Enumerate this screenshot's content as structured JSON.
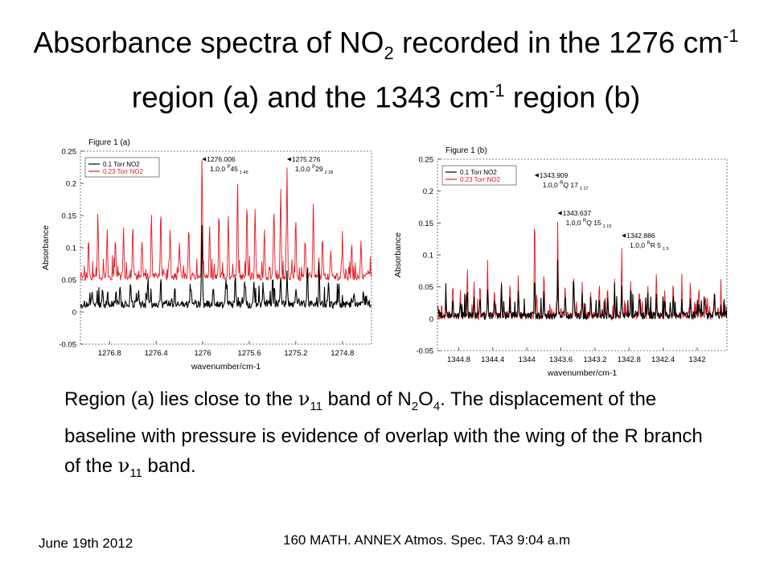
{
  "title": {
    "part1": "Absorbance spectra of NO",
    "sub1": "2",
    "part2": " recorded in the 1276 cm",
    "sup1": "-1",
    "part3": " region (a) and the 1343 cm",
    "sup2": "-1",
    "part4": " region (b)"
  },
  "caption": {
    "t1": "Region (a) lies close to  the ",
    "nu": "ν",
    "sub11": "11",
    "t2": " band of N",
    "sub2": "2",
    "t3": "O",
    "sub4": "4",
    "t4": ". The displacement of the baseline with pressure is evidence of overlap with the wing  of the R branch of the ",
    "nu2": "ν",
    "sub11b": "11",
    "t5": " band."
  },
  "footer": {
    "date": "June 19th 2012",
    "middle": "160 MATH. ANNEX Atmos. Spec. TA3 9:04 a.m"
  },
  "colors": {
    "black_series": "#000000",
    "red_series": "#e8141e"
  },
  "chart_data": [
    {
      "type": "line",
      "title": "Figure 1 (a)",
      "xlabel": "wavenumber/cm-1",
      "ylabel": "Absorbance",
      "xlim": [
        1277.05,
        1274.55
      ],
      "ylim": [
        -0.05,
        0.25
      ],
      "x_reversed": true,
      "xticks": [
        "1276.8",
        "1276.4",
        "1276",
        "1275.6",
        "1275.2",
        "1274.8"
      ],
      "xtick_values": [
        1276.8,
        1276.4,
        1276.0,
        1275.6,
        1275.2,
        1274.8
      ],
      "yticks": [
        "-0.05",
        "0",
        "0.05",
        "0.1",
        "0.15",
        "0.2",
        "0.25"
      ],
      "ytick_values": [
        -0.05,
        0,
        0.05,
        0.1,
        0.15,
        0.2,
        0.25
      ],
      "legend": {
        "position": "top-left",
        "entries": [
          "0.1 Torr NO2",
          "0.23 Torr NO2"
        ]
      },
      "series": [
        {
          "name": "0.1 Torr NO2",
          "color": "#000000",
          "baseline": 0.012,
          "peaks": [
            [
              1276.95,
              0.03
            ],
            [
              1276.86,
              0.035
            ],
            [
              1276.71,
              0.04
            ],
            [
              1276.62,
              0.045
            ],
            [
              1276.55,
              0.03
            ],
            [
              1276.47,
              0.05
            ],
            [
              1276.36,
              0.055
            ],
            [
              1276.24,
              0.04
            ],
            [
              1276.1,
              0.04
            ],
            [
              1276.006,
              0.14
            ],
            [
              1275.91,
              0.04
            ],
            [
              1275.8,
              0.05
            ],
            [
              1275.72,
              0.06
            ],
            [
              1275.64,
              0.045
            ],
            [
              1275.56,
              0.05
            ],
            [
              1275.48,
              0.04
            ],
            [
              1275.4,
              0.045
            ],
            [
              1275.33,
              0.05
            ],
            [
              1275.276,
              0.06
            ],
            [
              1275.2,
              0.04
            ],
            [
              1275.1,
              0.07
            ],
            [
              1275.0,
              0.06
            ],
            [
              1274.92,
              0.05
            ],
            [
              1274.83,
              0.04
            ],
            [
              1274.7,
              0.03
            ],
            [
              1274.62,
              0.035
            ]
          ]
        },
        {
          "name": "0.23 Torr NO2",
          "color": "#e8141e",
          "baseline": 0.055,
          "peaks": [
            [
              1276.98,
              0.12
            ],
            [
              1276.9,
              0.15
            ],
            [
              1276.82,
              0.13
            ],
            [
              1276.75,
              0.12
            ],
            [
              1276.68,
              0.13
            ],
            [
              1276.6,
              0.14
            ],
            [
              1276.52,
              0.11
            ],
            [
              1276.44,
              0.15
            ],
            [
              1276.36,
              0.16
            ],
            [
              1276.28,
              0.13
            ],
            [
              1276.2,
              0.11
            ],
            [
              1276.12,
              0.14
            ],
            [
              1276.006,
              0.24
            ],
            [
              1275.94,
              0.13
            ],
            [
              1275.86,
              0.16
            ],
            [
              1275.78,
              0.15
            ],
            [
              1275.7,
              0.2
            ],
            [
              1275.62,
              0.17
            ],
            [
              1275.55,
              0.16
            ],
            [
              1275.47,
              0.13
            ],
            [
              1275.39,
              0.15
            ],
            [
              1275.33,
              0.2
            ],
            [
              1275.276,
              0.22
            ],
            [
              1275.2,
              0.14
            ],
            [
              1275.12,
              0.12
            ],
            [
              1275.05,
              0.17
            ],
            [
              1274.97,
              0.12
            ],
            [
              1274.9,
              0.1
            ],
            [
              1274.8,
              0.12
            ],
            [
              1274.72,
              0.1
            ],
            [
              1274.64,
              0.11
            ]
          ]
        }
      ],
      "annotations": [
        {
          "x": 1276.006,
          "line1": "1276.006",
          "line2": "1,0,0 ",
          "sup": "P",
          "line2b": "45",
          "sub": "1 45"
        },
        {
          "x": 1275.276,
          "line1": "1275.276",
          "line2": "1,0,0 ",
          "sup": "P",
          "line2b": "29",
          "sub": "2 28"
        }
      ]
    },
    {
      "type": "line",
      "title": "Figure 1 (b)",
      "xlabel": "wavenumber/cm-1",
      "ylabel": "Absorbance",
      "xlim": [
        1345.05,
        1341.65
      ],
      "ylim": [
        -0.05,
        0.25
      ],
      "x_reversed": true,
      "xticks": [
        "1344.8",
        "1344.4",
        "1344",
        "1343.6",
        "1343.2",
        "1342.8",
        "1342.4",
        "1342"
      ],
      "xtick_values": [
        1344.8,
        1344.4,
        1344.0,
        1343.6,
        1343.2,
        1342.8,
        1342.4,
        1342.0
      ],
      "yticks": [
        "-0.05",
        "0",
        "0.05",
        "0.1",
        "0.15",
        "0.2",
        "0.25"
      ],
      "ytick_values": [
        -0.05,
        0,
        0.05,
        0.1,
        0.15,
        0.2,
        0.25
      ],
      "legend": {
        "position": "top-left",
        "entries": [
          "0.1 Torr NO2",
          "0.23 Torr NO2"
        ]
      },
      "series": [
        {
          "name": "0.1 Torr NO2",
          "color": "#000000",
          "baseline": 0.005,
          "peaks": [
            [
              1344.95,
              0.03
            ],
            [
              1344.87,
              0.04
            ],
            [
              1344.78,
              0.03
            ],
            [
              1344.7,
              0.05
            ],
            [
              1344.62,
              0.035
            ],
            [
              1344.55,
              0.04
            ],
            [
              1344.46,
              0.05
            ],
            [
              1344.38,
              0.035
            ],
            [
              1344.3,
              0.04
            ],
            [
              1344.2,
              0.03
            ],
            [
              1344.1,
              0.05
            ],
            [
              1343.909,
              0.07
            ],
            [
              1343.8,
              0.05
            ],
            [
              1343.637,
              0.09
            ],
            [
              1343.55,
              0.04
            ],
            [
              1343.45,
              0.05
            ],
            [
              1343.35,
              0.04
            ],
            [
              1343.25,
              0.035
            ],
            [
              1343.15,
              0.04
            ],
            [
              1343.05,
              0.03
            ],
            [
              1342.97,
              0.035
            ],
            [
              1342.886,
              0.05
            ],
            [
              1342.78,
              0.04
            ],
            [
              1342.68,
              0.035
            ],
            [
              1342.58,
              0.04
            ],
            [
              1342.48,
              0.045
            ],
            [
              1342.38,
              0.03
            ],
            [
              1342.28,
              0.04
            ],
            [
              1342.18,
              0.03
            ],
            [
              1342.08,
              0.035
            ],
            [
              1341.98,
              0.03
            ],
            [
              1341.9,
              0.025
            ],
            [
              1341.8,
              0.03
            ],
            [
              1341.72,
              0.02
            ]
          ]
        },
        {
          "name": "0.23 Torr NO2",
          "color": "#e8141e",
          "baseline": 0.005,
          "peaks": [
            [
              1344.95,
              0.05
            ],
            [
              1344.87,
              0.06
            ],
            [
              1344.78,
              0.05
            ],
            [
              1344.7,
              0.07
            ],
            [
              1344.62,
              0.06
            ],
            [
              1344.55,
              0.055
            ],
            [
              1344.46,
              0.07
            ],
            [
              1344.38,
              0.05
            ],
            [
              1344.3,
              0.06
            ],
            [
              1344.2,
              0.05
            ],
            [
              1344.1,
              0.07
            ],
            [
              1343.909,
              0.185
            ],
            [
              1343.8,
              0.07
            ],
            [
              1343.637,
              0.155
            ],
            [
              1343.55,
              0.06
            ],
            [
              1343.45,
              0.07
            ],
            [
              1343.35,
              0.055
            ],
            [
              1343.25,
              0.05
            ],
            [
              1343.15,
              0.06
            ],
            [
              1343.05,
              0.05
            ],
            [
              1342.97,
              0.05
            ],
            [
              1342.886,
              0.115
            ],
            [
              1342.78,
              0.06
            ],
            [
              1342.68,
              0.05
            ],
            [
              1342.58,
              0.055
            ],
            [
              1342.48,
              0.065
            ],
            [
              1342.38,
              0.05
            ],
            [
              1342.28,
              0.055
            ],
            [
              1342.18,
              0.05
            ],
            [
              1342.08,
              0.055
            ],
            [
              1341.98,
              0.05
            ],
            [
              1341.9,
              0.04
            ],
            [
              1341.8,
              0.045
            ],
            [
              1341.72,
              0.035
            ]
          ]
        }
      ],
      "annotations": [
        {
          "x": 1343.909,
          "line1": "1343.909",
          "line2": "1,0,0 ",
          "sup": "R",
          "line2b": "Q 17",
          "sub": "1 17"
        },
        {
          "x": 1343.637,
          "line1": "1343.637",
          "line2": "1,0,0 ",
          "sup": "R",
          "line2b": "Q 15",
          "sub": "1 15"
        },
        {
          "x": 1342.886,
          "line1": "1342.886",
          "line2": "1,0,0 ",
          "sup": "R",
          "line2b": "R 5",
          "sub": "1 5"
        }
      ]
    }
  ]
}
